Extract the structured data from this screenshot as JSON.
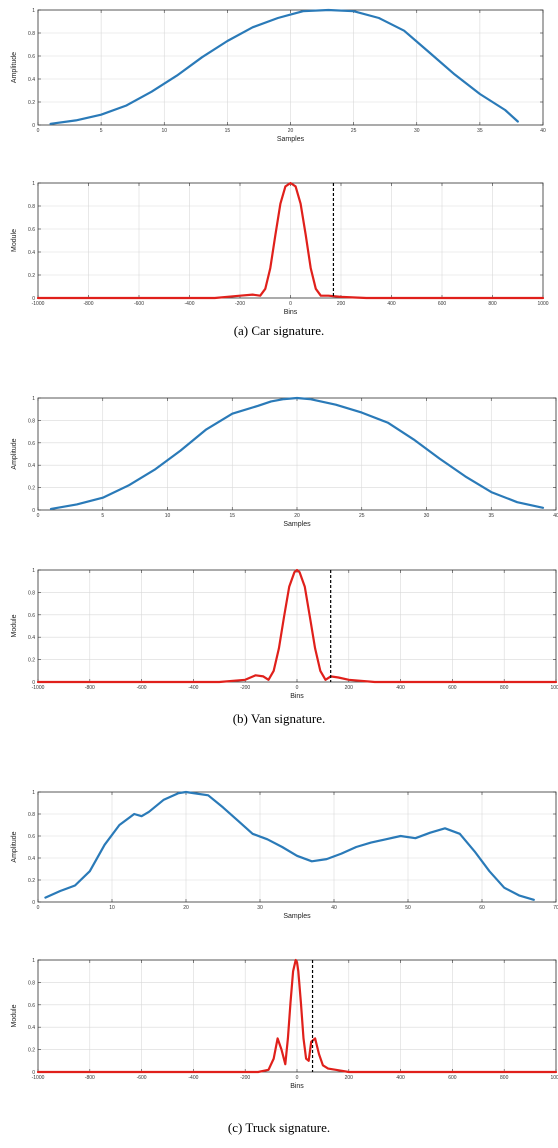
{
  "captions": {
    "car": "(a) Car signature.",
    "van": "(b) Van signature.",
    "truck": "(c) Truck signature."
  },
  "colors": {
    "time_series": "#2a7ab8",
    "spectrum": "#e0201b",
    "marker": "#000000",
    "grid": "#d9d9d9",
    "frame": "#333333"
  },
  "chart_data": [
    {
      "id": "car-time",
      "type": "line",
      "xlabel": "Samples",
      "ylabel": "Amplitude",
      "xlim": [
        0,
        40
      ],
      "ylim": [
        0,
        1
      ],
      "x_ticks": [
        0,
        5,
        10,
        15,
        20,
        25,
        30,
        35,
        40
      ],
      "y_ticks": [
        0,
        0.2,
        0.4,
        0.6,
        0.8,
        1
      ],
      "x_tick_labels": [
        "0",
        "5",
        "10",
        "15",
        "20",
        "25",
        "30",
        "35",
        "40"
      ],
      "y_tick_labels": [
        "0",
        "0.2",
        "0.4",
        "0.6",
        "0.8",
        "1"
      ],
      "grid": true,
      "series": [
        {
          "color": "#2a7ab8",
          "x": [
            1,
            3,
            5,
            7,
            9,
            11,
            13,
            15,
            17,
            19,
            20,
            21,
            23,
            25,
            27,
            29,
            31,
            33,
            35,
            37,
            38
          ],
          "y": [
            0.01,
            0.04,
            0.09,
            0.17,
            0.29,
            0.43,
            0.59,
            0.73,
            0.85,
            0.93,
            0.96,
            0.99,
            1.0,
            0.99,
            0.93,
            0.82,
            0.63,
            0.44,
            0.27,
            0.13,
            0.03
          ]
        }
      ]
    },
    {
      "id": "car-spectrum",
      "type": "line",
      "xlabel": "Bins",
      "ylabel": "Module",
      "xlim": [
        -1000,
        1000
      ],
      "ylim": [
        0,
        1
      ],
      "x_ticks": [
        -1000,
        -800,
        -600,
        -400,
        -200,
        0,
        200,
        400,
        600,
        800,
        1000
      ],
      "y_ticks": [
        0,
        0.2,
        0.4,
        0.6,
        0.8,
        1
      ],
      "x_tick_labels": [
        "-1000",
        "-800",
        "-600",
        "-400",
        "-200",
        "0",
        "200",
        "400",
        "600",
        "800",
        "1000"
      ],
      "y_tick_labels": [
        "0",
        "0.2",
        "0.4",
        "0.6",
        "0.8",
        "1"
      ],
      "grid": true,
      "series": [
        {
          "color": "#e0201b",
          "x": [
            -1000,
            -300,
            -200,
            -150,
            -120,
            -100,
            -80,
            -60,
            -40,
            -20,
            0,
            20,
            40,
            60,
            80,
            100,
            120,
            150,
            200,
            300,
            1000
          ],
          "y": [
            0.0,
            0.0,
            0.02,
            0.03,
            0.02,
            0.08,
            0.26,
            0.55,
            0.82,
            0.97,
            1.0,
            0.97,
            0.82,
            0.55,
            0.26,
            0.08,
            0.02,
            0.02,
            0.01,
            0.0,
            0.0
          ]
        }
      ],
      "marker_x": 170
    },
    {
      "id": "van-time",
      "type": "line",
      "xlabel": "Samples",
      "ylabel": "Amplitude",
      "xlim": [
        0,
        40
      ],
      "ylim": [
        0,
        1
      ],
      "x_ticks": [
        0,
        5,
        10,
        15,
        20,
        25,
        30,
        35,
        40
      ],
      "y_ticks": [
        0,
        0.2,
        0.4,
        0.6,
        0.8,
        1
      ],
      "x_tick_labels": [
        "0",
        "5",
        "10",
        "15",
        "20",
        "25",
        "30",
        "35",
        "40"
      ],
      "y_tick_labels": [
        "0",
        "0.2",
        "0.4",
        "0.6",
        "0.8",
        "1"
      ],
      "grid": true,
      "series": [
        {
          "color": "#2a7ab8",
          "x": [
            1,
            3,
            5,
            7,
            9,
            11,
            13,
            15,
            17,
            18,
            19,
            20,
            21,
            23,
            25,
            27,
            29,
            31,
            33,
            35,
            37,
            39
          ],
          "y": [
            0.01,
            0.05,
            0.11,
            0.22,
            0.36,
            0.53,
            0.72,
            0.86,
            0.93,
            0.97,
            0.99,
            1.0,
            0.99,
            0.94,
            0.87,
            0.78,
            0.63,
            0.46,
            0.3,
            0.16,
            0.07,
            0.02
          ]
        }
      ]
    },
    {
      "id": "van-spectrum",
      "type": "line",
      "xlabel": "Bins",
      "ylabel": "Module",
      "xlim": [
        -1000,
        1000
      ],
      "ylim": [
        0,
        1
      ],
      "x_ticks": [
        -1000,
        -800,
        -600,
        -400,
        -200,
        0,
        200,
        400,
        600,
        800,
        1000
      ],
      "y_ticks": [
        0,
        0.2,
        0.4,
        0.6,
        0.8,
        1
      ],
      "x_tick_labels": [
        "-1000",
        "-800",
        "-600",
        "-400",
        "-200",
        "0",
        "200",
        "400",
        "600",
        "800",
        "1000"
      ],
      "y_tick_labels": [
        "0",
        "0.2",
        "0.4",
        "0.6",
        "0.8",
        "1"
      ],
      "grid": true,
      "series": [
        {
          "color": "#e0201b",
          "x": [
            -1000,
            -300,
            -200,
            -160,
            -130,
            -110,
            -90,
            -70,
            -50,
            -30,
            -10,
            0,
            10,
            30,
            50,
            70,
            90,
            110,
            130,
            160,
            200,
            300,
            1000
          ],
          "y": [
            0.0,
            0.0,
            0.02,
            0.06,
            0.05,
            0.02,
            0.1,
            0.3,
            0.58,
            0.85,
            0.98,
            1.0,
            0.98,
            0.85,
            0.58,
            0.3,
            0.1,
            0.02,
            0.05,
            0.04,
            0.02,
            0.0,
            0.0
          ]
        }
      ],
      "marker_x": 130
    },
    {
      "id": "truck-time",
      "type": "line",
      "xlabel": "Samples",
      "ylabel": "Amplitude",
      "xlim": [
        0,
        70
      ],
      "ylim": [
        0,
        1
      ],
      "x_ticks": [
        0,
        10,
        20,
        30,
        40,
        50,
        60,
        70
      ],
      "y_ticks": [
        0,
        0.2,
        0.4,
        0.6,
        0.8,
        1
      ],
      "x_tick_labels": [
        "0",
        "10",
        "20",
        "30",
        "40",
        "50",
        "60",
        "70"
      ],
      "y_tick_labels": [
        "0",
        "0.2",
        "0.4",
        "0.6",
        "0.8",
        "1"
      ],
      "grid": true,
      "series": [
        {
          "color": "#2a7ab8",
          "x": [
            1,
            3,
            5,
            7,
            9,
            11,
            13,
            14,
            15,
            17,
            19,
            20,
            21,
            23,
            25,
            27,
            29,
            31,
            33,
            35,
            37,
            39,
            41,
            43,
            45,
            47,
            49,
            51,
            53,
            55,
            57,
            59,
            61,
            63,
            65,
            67
          ],
          "y": [
            0.04,
            0.1,
            0.15,
            0.28,
            0.52,
            0.7,
            0.8,
            0.78,
            0.82,
            0.93,
            0.99,
            1.0,
            0.99,
            0.97,
            0.86,
            0.74,
            0.62,
            0.57,
            0.5,
            0.42,
            0.37,
            0.39,
            0.44,
            0.5,
            0.54,
            0.57,
            0.6,
            0.58,
            0.63,
            0.67,
            0.62,
            0.46,
            0.28,
            0.13,
            0.06,
            0.02
          ]
        }
      ]
    },
    {
      "id": "truck-spectrum",
      "type": "line",
      "xlabel": "Bins",
      "ylabel": "Module",
      "xlim": [
        -1000,
        1000
      ],
      "ylim": [
        0,
        1
      ],
      "x_ticks": [
        -1000,
        -800,
        -600,
        -400,
        -200,
        0,
        200,
        400,
        600,
        800,
        1000
      ],
      "y_ticks": [
        0,
        0.2,
        0.4,
        0.6,
        0.8,
        1
      ],
      "x_tick_labels": [
        "-1000",
        "-800",
        "-600",
        "-400",
        "-200",
        "0",
        "200",
        "400",
        "600",
        "800",
        "1000"
      ],
      "y_tick_labels": [
        "0",
        "0.2",
        "0.4",
        "0.6",
        "0.8",
        "1"
      ],
      "grid": true,
      "series": [
        {
          "color": "#e0201b",
          "x": [
            -1000,
            -150,
            -110,
            -90,
            -75,
            -60,
            -45,
            -35,
            -25,
            -15,
            -5,
            0,
            5,
            15,
            25,
            35,
            45,
            55,
            70,
            85,
            100,
            120,
            150,
            200,
            1000
          ],
          "y": [
            0.0,
            0.0,
            0.02,
            0.12,
            0.3,
            0.2,
            0.07,
            0.3,
            0.62,
            0.9,
            1.0,
            0.98,
            0.9,
            0.62,
            0.3,
            0.12,
            0.1,
            0.27,
            0.3,
            0.16,
            0.06,
            0.03,
            0.02,
            0.0,
            0.0
          ]
        }
      ],
      "marker_x": 60
    }
  ]
}
